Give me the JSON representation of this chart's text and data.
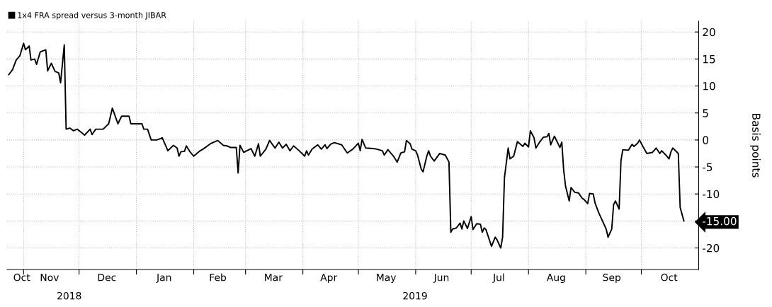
{
  "chart_data": {
    "type": "line",
    "ylabel": "Basis points",
    "annotations": [
      "2018",
      "2019"
    ],
    "series": [
      {
        "name": "1x4 FRA spread versus 3-month JIBAR",
        "color": "#000000",
        "x": [
          "2018-10-24",
          "2018-10-26",
          "2018-10-28",
          "2018-10-30",
          "2018-11-01",
          "2018-11-02",
          "2018-11-04",
          "2018-11-05",
          "2018-11-07",
          "2018-11-08",
          "2018-11-10",
          "2018-11-13",
          "2018-11-14",
          "2018-11-16",
          "2018-11-18",
          "2018-11-20",
          "2018-11-21",
          "2018-11-23",
          "2018-11-24",
          "2018-11-26",
          "2018-11-28",
          "2018-11-30",
          "2018-12-04",
          "2018-12-07",
          "2018-12-08",
          "2018-12-10",
          "2018-12-14",
          "2018-12-17",
          "2018-12-19",
          "2018-12-22",
          "2018-12-24",
          "2018-12-28",
          "2018-12-29",
          "2019-01-01",
          "2019-01-04",
          "2019-01-05",
          "2019-01-07",
          "2019-01-09",
          "2019-01-12",
          "2019-01-15",
          "2019-01-16",
          "2019-01-18",
          "2019-01-21",
          "2019-01-23",
          "2019-01-24",
          "2019-01-25",
          "2019-01-27",
          "2019-01-28",
          "2019-01-30",
          "2019-02-01",
          "2019-02-04",
          "2019-02-06",
          "2019-02-10",
          "2019-02-14",
          "2019-02-17",
          "2019-02-19",
          "2019-02-21",
          "2019-02-24",
          "2019-02-25",
          "2019-02-26",
          "2019-02-28",
          "2019-03-04",
          "2019-03-06",
          "2019-03-08",
          "2019-03-09",
          "2019-03-12",
          "2019-03-14",
          "2019-03-17",
          "2019-03-19",
          "2019-03-21",
          "2019-03-23",
          "2019-03-25",
          "2019-03-27",
          "2019-03-30",
          "2019-04-02",
          "2019-04-03",
          "2019-04-04",
          "2019-04-06",
          "2019-04-09",
          "2019-04-11",
          "2019-04-13",
          "2019-04-14",
          "2019-04-16",
          "2019-04-18",
          "2019-04-22",
          "2019-04-25",
          "2019-04-28",
          "2019-05-01",
          "2019-05-02",
          "2019-05-03",
          "2019-05-05",
          "2019-05-09",
          "2019-05-11",
          "2019-05-14",
          "2019-05-15",
          "2019-05-17",
          "2019-05-20",
          "2019-05-22",
          "2019-05-24",
          "2019-05-26",
          "2019-05-27",
          "2019-05-29",
          "2019-05-30",
          "2019-06-01",
          "2019-06-02",
          "2019-06-04",
          "2019-06-05",
          "2019-06-07",
          "2019-06-08",
          "2019-06-09",
          "2019-06-11",
          "2019-06-14",
          "2019-06-17",
          "2019-06-19",
          "2019-06-20",
          "2019-06-21",
          "2019-06-23",
          "2019-06-25",
          "2019-06-26",
          "2019-06-27",
          "2019-06-29",
          "2019-07-01",
          "2019-07-02",
          "2019-07-04",
          "2019-07-06",
          "2019-07-07",
          "2019-07-08",
          "2019-07-09",
          "2019-07-12",
          "2019-07-14",
          "2019-07-15",
          "2019-07-17",
          "2019-07-18",
          "2019-07-19",
          "2019-07-21",
          "2019-07-22",
          "2019-07-24",
          "2019-07-26",
          "2019-07-27",
          "2019-07-29",
          "2019-07-30",
          "2019-08-01",
          "2019-08-02",
          "2019-08-04",
          "2019-08-05",
          "2019-08-07",
          "2019-08-09",
          "2019-08-11",
          "2019-08-12",
          "2019-08-13",
          "2019-08-15",
          "2019-08-18",
          "2019-08-19",
          "2019-08-20",
          "2019-08-21",
          "2019-08-23",
          "2019-08-24",
          "2019-08-26",
          "2019-08-28",
          "2019-08-30",
          "2019-08-31",
          "2019-09-02",
          "2019-09-03",
          "2019-09-05",
          "2019-09-06",
          "2019-09-08",
          "2019-09-10",
          "2019-09-12",
          "2019-09-13",
          "2019-09-15",
          "2019-09-16",
          "2019-09-17",
          "2019-09-19",
          "2019-09-20",
          "2019-09-21",
          "2019-09-24",
          "2019-09-26",
          "2019-09-27",
          "2019-09-29",
          "2019-09-30",
          "2019-10-02",
          "2019-10-04",
          "2019-10-07",
          "2019-10-09",
          "2019-10-11",
          "2019-10-12",
          "2019-10-14",
          "2019-10-16",
          "2019-10-17",
          "2019-10-18",
          "2019-10-21",
          "2019-10-22",
          "2019-10-24"
        ],
        "values": [
          12.1,
          13,
          14.8,
          15.6,
          17.9,
          16.7,
          17.4,
          14.8,
          15,
          14,
          16.3,
          16.7,
          12.8,
          14.2,
          12.7,
          12.4,
          10.6,
          17.6,
          2.0,
          2.2,
          1.7,
          2.0,
          0.9,
          2.0,
          1.0,
          2.0,
          2.0,
          3.0,
          5.9,
          3.0,
          4.4,
          4.4,
          3.0,
          3.0,
          3.0,
          2.0,
          2.0,
          0,
          0,
          0.4,
          -0.4,
          -2.0,
          -1.0,
          -1.5,
          -3.0,
          -2.2,
          -2.1,
          -1.1,
          -2.2,
          -3.0,
          -2.1,
          -1.7,
          -0.7,
          -0.1,
          -1.0,
          -1.1,
          -1.4,
          -1.4,
          -6.1,
          -1.0,
          -2.3,
          -1.6,
          -3.0,
          -0.7,
          -3.0,
          -1.7,
          -0.1,
          -1.5,
          -0.4,
          -1.5,
          -0.8,
          -2.0,
          -1.1,
          -2.0,
          -3.0,
          -2.0,
          -2.8,
          -1.7,
          -0.9,
          -1.7,
          -0.9,
          -1.6,
          -0.8,
          -0.5,
          -0.9,
          -2.4,
          -1.7,
          -0.6,
          -2.0,
          0.1,
          -1.5,
          -1.6,
          -1.7,
          -2.0,
          -2.8,
          -1.8,
          -3.0,
          -4.1,
          -2.4,
          -2.2,
          -0.1,
          -0.7,
          -1.7,
          -2.0,
          -2.8,
          -5.4,
          -5.9,
          -3.0,
          -2.0,
          -3.0,
          -3.9,
          -2.5,
          -2.8,
          -4.1,
          -17.1,
          -16.5,
          -16.3,
          -15.4,
          -16.5,
          -15.0,
          -16.4,
          -14.2,
          -16.6,
          -15.5,
          -15.6,
          -17.1,
          -16.3,
          -16.6,
          -19.7,
          -18.0,
          -18.5,
          -20.0,
          -18.0,
          -7.0,
          -1.5,
          -3.5,
          -3.0,
          -0.3,
          -0.6,
          -1.2,
          -0.6,
          -1.3,
          1.7,
          0.4,
          -1.5,
          -0.4,
          0.5,
          0.6,
          1.2,
          -0.9,
          0.7,
          -1.4,
          -0.4,
          -5.5,
          -8.5,
          -11.3,
          -8.8,
          -9.7,
          -9.8,
          -10.8,
          -11.0,
          -11.8,
          -9.9,
          -10.0,
          -11.7,
          -13.5,
          -15.0,
          -16.5,
          -18.0,
          -16.5,
          -12.0,
          -11.3,
          -12.8,
          -3.8,
          -1.8,
          -1.9,
          -0.8,
          -1.2,
          -0.6,
          0,
          -1.3,
          -2.5,
          -2.3,
          -1.5,
          -2.5,
          -2.0,
          -2.7,
          -3.5,
          -2.2,
          -1.5,
          -2.5,
          -12.5,
          -15.0
        ]
      }
    ],
    "xlim": [
      "2018-10-23",
      "2019-11-01"
    ],
    "xticks": [
      {
        "value": "2018-11-01",
        "label": null
      },
      {
        "value": "2018-12-01",
        "label": null
      },
      {
        "value": "2019-01-01",
        "label": null
      },
      {
        "value": "2019-02-01",
        "label": null
      },
      {
        "value": "2019-03-01",
        "label": null
      },
      {
        "value": "2019-04-01",
        "label": null
      },
      {
        "value": "2019-05-01",
        "label": null
      },
      {
        "value": "2019-06-01",
        "label": null
      },
      {
        "value": "2019-07-01",
        "label": null
      },
      {
        "value": "2019-08-01",
        "label": null
      },
      {
        "value": "2019-09-01",
        "label": null
      },
      {
        "value": "2019-10-01",
        "label": null
      },
      {
        "value": "2018-10-31",
        "label": "Oct"
      },
      {
        "value": "2018-11-15",
        "label": "Nov"
      },
      {
        "value": "2018-12-16",
        "label": "Dec"
      },
      {
        "value": "2019-01-16",
        "label": "Jan"
      },
      {
        "value": "2019-02-14",
        "label": "Feb"
      },
      {
        "value": "2019-03-16",
        "label": "Mar"
      },
      {
        "value": "2019-04-15",
        "label": "Apr"
      },
      {
        "value": "2019-05-16",
        "label": "May"
      },
      {
        "value": "2019-06-15",
        "label": "Jun"
      },
      {
        "value": "2019-07-16",
        "label": "Jul"
      },
      {
        "value": "2019-08-16",
        "label": "Aug"
      },
      {
        "value": "2019-09-15",
        "label": "Sep"
      },
      {
        "value": "2019-10-16",
        "label": "Oct"
      }
    ],
    "ylim": [
      -24,
      22
    ],
    "yticks": [
      -20,
      {
        "value": -15,
        "label": "-15.00"
      },
      -10,
      -5,
      0,
      5,
      10,
      15,
      20
    ],
    "grid": true,
    "legend": "top left",
    "marker": "none",
    "line_style": "solid"
  }
}
